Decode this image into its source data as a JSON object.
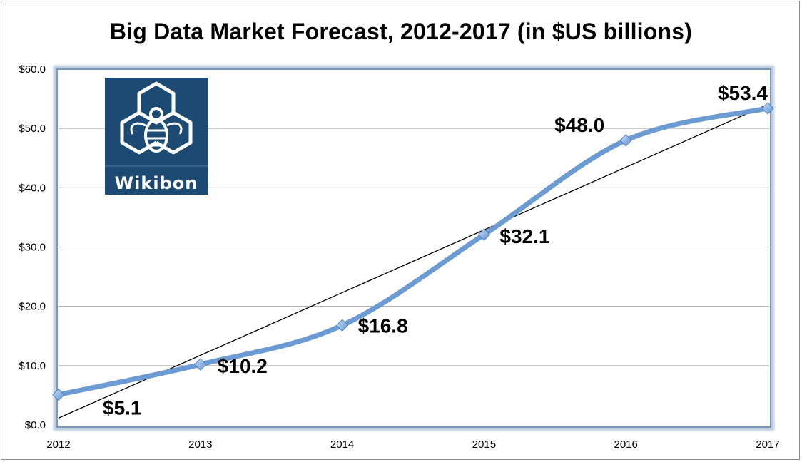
{
  "chart_data": {
    "type": "line",
    "title": "Big Data Market Forecast, 2012-2017 (in $US billions)",
    "x": [
      "2012",
      "2013",
      "2014",
      "2015",
      "2016",
      "2017"
    ],
    "series": [
      {
        "values": [
          5.1,
          10.2,
          16.8,
          32.1,
          48.0,
          53.4
        ]
      }
    ],
    "data_labels": [
      "$5.1",
      "$10.2",
      "$16.8",
      "$32.1",
      "$48.0",
      "$53.4"
    ],
    "y_tick_labels": [
      "$0.0",
      "$10.0",
      "$20.0",
      "$30.0",
      "$40.0",
      "$50.0",
      "$60.0"
    ],
    "ylim": [
      0,
      60
    ],
    "grid": true,
    "linear_trendline": true,
    "colors": {
      "series": "#6b9bd2",
      "marker": "#8cb6e8",
      "trendline": "#000000",
      "gridline": "#a6a6a6",
      "plot_border": "#8aa3c4",
      "logo_bg": "#1d4a73"
    },
    "logo": {
      "text": "Wikibon"
    }
  }
}
